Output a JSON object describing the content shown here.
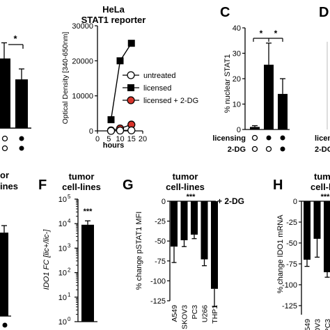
{
  "colors": {
    "black": "#000000",
    "red": "#d9342b",
    "white": "#ffffff",
    "gray": "#bbbbbb"
  },
  "top_left": {
    "star": "*"
  },
  "hela": {
    "title": "HeLa",
    "subtitle": "STAT1 reporter",
    "ylabel": "Optical Density [340-650nm]",
    "xlabel": "hours",
    "yticks": [
      "0",
      "10000",
      "20000",
      "30000"
    ],
    "xticks": [
      "0",
      "5",
      "10",
      "15",
      "20"
    ],
    "legend": [
      "untreated",
      "licensed",
      "licensed + 2-DG"
    ]
  },
  "panel_c": {
    "letter": "C",
    "ylabel": "% nuclear STAT1",
    "yticks": [
      "0",
      "10",
      "20",
      "30",
      "40"
    ],
    "stars": [
      "*",
      "*"
    ],
    "row_labels": [
      "licensing",
      "2-DG"
    ]
  },
  "panel_d": {
    "letter": "D",
    "row_labels": [
      "licen",
      "2-DG"
    ]
  },
  "panel_e": {
    "title1": "or",
    "title2": "ines"
  },
  "panel_f": {
    "letter": "F",
    "title1": "tumor",
    "title2": "cell-lines",
    "ylabel": "IDO1 FC [lic+/lic-]",
    "yticks": [
      "10",
      "10",
      "10",
      "10",
      "10",
      "10"
    ],
    "yexp": [
      "0",
      "1",
      "2",
      "3",
      "4",
      "5"
    ],
    "stars": "***"
  },
  "panel_g": {
    "letter": "G",
    "title1": "tumor",
    "title2": "cell-lines",
    "ylabel": "% change pSTAT1 MFI",
    "yticks": [
      "0",
      "-25",
      "-50",
      "-75",
      "-100",
      "-125"
    ],
    "stars": "***",
    "treatment": "+ 2-DG"
  },
  "panel_h": {
    "letter": "H",
    "title1": "tum",
    "title2": "cell-li",
    "ylabel": "% change IDO1 mRNA",
    "yticks": [
      "0",
      "-25",
      "-50",
      "-75",
      "-100",
      "-125"
    ],
    "stars": "***"
  },
  "chart_data": [
    {
      "type": "bar",
      "panel": "top-left (cropped)",
      "values": [
        20,
        14
      ],
      "errors": [
        4.5,
        3
      ],
      "ylim": [
        0,
        30
      ]
    },
    {
      "type": "line",
      "panel": "HeLa STAT1 reporter",
      "title": "HeLa",
      "subtitle": "STAT1 reporter",
      "xlabel": "hours",
      "ylabel": "Optical Density [340-650nm]",
      "xlim": [
        0,
        20
      ],
      "ylim": [
        0,
        30000
      ],
      "series": [
        {
          "name": "untreated",
          "x": [
            6,
            10,
            15
          ],
          "y": [
            0,
            100,
            150
          ]
        },
        {
          "name": "licensed",
          "x": [
            6,
            10,
            15
          ],
          "y": [
            3200,
            20000,
            25000
          ]
        },
        {
          "name": "licensed + 2-DG",
          "x": [
            6,
            10,
            15
          ],
          "y": [
            150,
            700,
            1800
          ]
        }
      ]
    },
    {
      "type": "bar",
      "panel": "C",
      "ylabel": "% nuclear STAT1",
      "ylim": [
        0,
        40
      ],
      "categories": [
        "untreated",
        "licensed",
        "licensed + 2-DG"
      ],
      "values": [
        1,
        25.5,
        14
      ],
      "errors": [
        0.5,
        8.5,
        6
      ]
    },
    {
      "type": "bar",
      "panel": "E (cropped)",
      "values": [
        95
      ],
      "errors": [
        8
      ],
      "ylim": [
        0,
        130
      ]
    },
    {
      "type": "bar",
      "panel": "F",
      "ylabel": "IDO1 FC [lic+/lic-]",
      "yscale": "log",
      "ylim": [
        1,
        100000
      ],
      "values": [
        9000
      ],
      "errors": [
        4000
      ]
    },
    {
      "type": "bar",
      "panel": "G",
      "ylabel": "% change pSTAT1 MFI",
      "ylim": [
        -125,
        0
      ],
      "categories": [
        "A549",
        "SKOV3",
        "PC3",
        "U266",
        "THP1"
      ],
      "values": [
        -57,
        -49,
        -42,
        -73,
        -110
      ],
      "errors": [
        20,
        8,
        5,
        8,
        22
      ]
    },
    {
      "type": "bar",
      "panel": "H",
      "ylabel": "% change IDO1 mRNA",
      "ylim": [
        -125,
        0
      ],
      "categories": [
        "A549",
        "SKOV3",
        "PC3",
        "U"
      ],
      "values": [
        -70,
        -45,
        -85,
        -80
      ],
      "errors": [
        8,
        22,
        6,
        6
      ]
    }
  ]
}
